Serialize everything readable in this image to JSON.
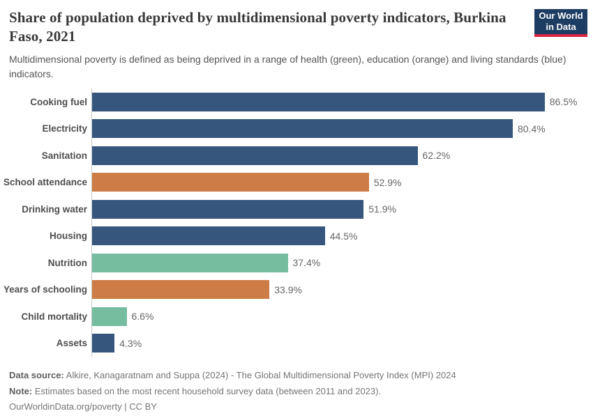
{
  "header": {
    "title": "Share of population deprived by multidimensional poverty indicators, Burkina Faso, 2021",
    "subtitle": "Multidimensional poverty is defined as being deprived in a range of health (green), education (orange) and living standards (blue) indicators.",
    "logo": {
      "line1": "Our World",
      "line2": "in Data",
      "bg_color": "#1d3d63",
      "accent_color": "#d7263d"
    }
  },
  "chart_data": {
    "type": "bar",
    "orientation": "horizontal",
    "title": "Share of population deprived by multidimensional poverty indicators, Burkina Faso, 2021",
    "unit": "%",
    "xlim": [
      0,
      90
    ],
    "grid": false,
    "legend": "none",
    "categories": [
      "Cooking fuel",
      "Electricity",
      "Sanitation",
      "School attendance",
      "Drinking water",
      "Housing",
      "Nutrition",
      "Years of schooling",
      "Child mortality",
      "Assets"
    ],
    "values": [
      86.5,
      80.4,
      62.2,
      52.9,
      51.9,
      44.5,
      37.4,
      33.9,
      6.6,
      4.3
    ],
    "value_labels": [
      "86.5%",
      "80.4%",
      "62.2%",
      "52.9%",
      "51.9%",
      "44.5%",
      "37.4%",
      "33.9%",
      "6.6%",
      "4.3%"
    ],
    "colors": [
      "#36567d",
      "#36567d",
      "#36567d",
      "#ce7c45",
      "#36567d",
      "#36567d",
      "#76bda0",
      "#ce7c45",
      "#76bda0",
      "#36567d"
    ],
    "color_key": {
      "#36567d": "living standards (blue)",
      "#ce7c45": "education (orange)",
      "#76bda0": "health (green)"
    }
  },
  "footer": {
    "data_source_label": "Data source:",
    "data_source_text": "Alkire, Kanagaratnam and Suppa (2024) - The Global Multidimensional Poverty Index (MPI) 2024",
    "note_label": "Note:",
    "note_text": "Estimates based on the most recent household survey data (between 2011 and 2023).",
    "license_text": "OurWorldinData.org/poverty | CC BY"
  }
}
